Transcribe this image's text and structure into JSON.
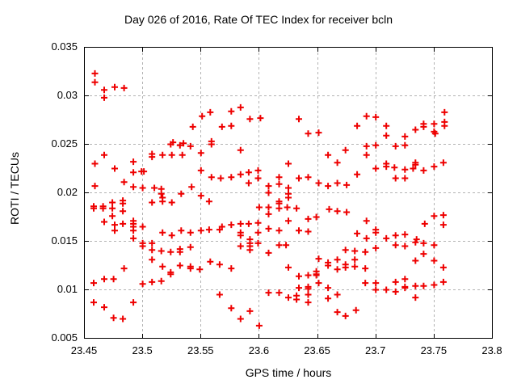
{
  "title": "Day 026 of 2016, Rate Of TEC Index for receiver bcln",
  "colors": {
    "background": "#ffffff",
    "text": "#000000",
    "border": "#000000",
    "grid": "#b3b3b3",
    "marker": "#ee0000"
  },
  "chart_data": {
    "type": "scatter",
    "title": "Day 026 of 2016, Rate Of TEC Index for receiver bcln",
    "xlabel": "GPS time / hours",
    "ylabel": "ROTI / TECUs",
    "xlim": [
      23.45,
      23.8
    ],
    "ylim": [
      0.005,
      0.035
    ],
    "x_ticks": [
      23.45,
      23.5,
      23.55,
      23.6,
      23.65,
      23.7,
      23.75,
      23.8
    ],
    "x_tick_labels": [
      "23.45",
      "23.5",
      "23.55",
      "23.6",
      "23.65",
      "23.7",
      "23.75",
      "23.8"
    ],
    "y_ticks": [
      0.005,
      0.01,
      0.015,
      0.02,
      0.025,
      0.03,
      0.035
    ],
    "y_tick_labels": [
      "0.005",
      "0.01",
      "0.015",
      "0.02",
      "0.025",
      "0.03",
      "0.035"
    ],
    "grid": true,
    "legend": "none",
    "marker": {
      "shape": "plus",
      "color": "#ee0000",
      "size": 9,
      "stroke": 2
    },
    "series": [
      {
        "name": "ROTI",
        "points": [
          [
            23.459,
            0.0323
          ],
          [
            23.459,
            0.0314
          ],
          [
            23.467,
            0.0306
          ],
          [
            23.467,
            0.0298
          ],
          [
            23.476,
            0.0309
          ],
          [
            23.484,
            0.0308
          ],
          [
            23.526,
            0.0252
          ],
          [
            23.535,
            0.0251
          ],
          [
            23.543,
            0.0268
          ],
          [
            23.551,
            0.0279
          ],
          [
            23.558,
            0.0283
          ],
          [
            23.559,
            0.0253
          ],
          [
            23.568,
            0.0268
          ],
          [
            23.576,
            0.0284
          ],
          [
            23.576,
            0.0269
          ],
          [
            23.584,
            0.0288
          ],
          [
            23.592,
            0.0276
          ],
          [
            23.601,
            0.0277
          ],
          [
            23.634,
            0.0276
          ],
          [
            23.642,
            0.0261
          ],
          [
            23.651,
            0.0262
          ],
          [
            23.684,
            0.0269
          ],
          [
            23.692,
            0.0279
          ],
          [
            23.7,
            0.0278
          ],
          [
            23.709,
            0.0269
          ],
          [
            23.709,
            0.0259
          ],
          [
            23.725,
            0.0258
          ],
          [
            23.734,
            0.0265
          ],
          [
            23.741,
            0.0271
          ],
          [
            23.741,
            0.0268
          ],
          [
            23.75,
            0.0271
          ],
          [
            23.75,
            0.0263
          ],
          [
            23.751,
            0.0261
          ],
          [
            23.759,
            0.0283
          ],
          [
            23.759,
            0.0273
          ],
          [
            23.759,
            0.0269
          ],
          [
            23.524,
            0.025
          ],
          [
            23.532,
            0.0249
          ],
          [
            23.541,
            0.0248
          ],
          [
            23.559,
            0.025
          ],
          [
            23.467,
            0.0239
          ],
          [
            23.508,
            0.024
          ],
          [
            23.508,
            0.0237
          ],
          [
            23.517,
            0.0239
          ],
          [
            23.525,
            0.0239
          ],
          [
            23.534,
            0.0239
          ],
          [
            23.55,
            0.0241
          ],
          [
            23.584,
            0.0244
          ],
          [
            23.674,
            0.0244
          ],
          [
            23.659,
            0.0239
          ],
          [
            23.692,
            0.0248
          ],
          [
            23.7,
            0.0249
          ],
          [
            23.717,
            0.0248
          ],
          [
            23.725,
            0.0249
          ],
          [
            23.692,
            0.0239
          ],
          [
            23.459,
            0.023
          ],
          [
            23.476,
            0.0225
          ],
          [
            23.492,
            0.0232
          ],
          [
            23.492,
            0.0221
          ],
          [
            23.499,
            0.0222
          ],
          [
            23.501,
            0.0222
          ],
          [
            23.55,
            0.0223
          ],
          [
            23.559,
            0.0216
          ],
          [
            23.567,
            0.0215
          ],
          [
            23.576,
            0.0216
          ],
          [
            23.584,
            0.0219
          ],
          [
            23.591,
            0.0221
          ],
          [
            23.591,
            0.021
          ],
          [
            23.599,
            0.0223
          ],
          [
            23.599,
            0.0215
          ],
          [
            23.617,
            0.0216
          ],
          [
            23.617,
            0.0209
          ],
          [
            23.625,
            0.023
          ],
          [
            23.634,
            0.0215
          ],
          [
            23.642,
            0.0216
          ],
          [
            23.651,
            0.021
          ],
          [
            23.659,
            0.0207
          ],
          [
            23.667,
            0.0231
          ],
          [
            23.667,
            0.021
          ],
          [
            23.675,
            0.0208
          ],
          [
            23.684,
            0.0219
          ],
          [
            23.709,
            0.023
          ],
          [
            23.709,
            0.0227
          ],
          [
            23.7,
            0.0225
          ],
          [
            23.716,
            0.0226
          ],
          [
            23.725,
            0.0224
          ],
          [
            23.734,
            0.0231
          ],
          [
            23.734,
            0.0229
          ],
          [
            23.732,
            0.0225
          ],
          [
            23.741,
            0.0223
          ],
          [
            23.75,
            0.0227
          ],
          [
            23.758,
            0.0231
          ],
          [
            23.717,
            0.0215
          ],
          [
            23.725,
            0.0215
          ],
          [
            23.484,
            0.0211
          ],
          [
            23.459,
            0.0207
          ],
          [
            23.492,
            0.0206
          ],
          [
            23.5,
            0.0205
          ],
          [
            23.51,
            0.0205
          ],
          [
            23.516,
            0.0204
          ],
          [
            23.542,
            0.0206
          ],
          [
            23.516,
            0.0199
          ],
          [
            23.533,
            0.0199
          ],
          [
            23.55,
            0.0197
          ],
          [
            23.517,
            0.0195
          ],
          [
            23.608,
            0.0207
          ],
          [
            23.608,
            0.02
          ],
          [
            23.625,
            0.0205
          ],
          [
            23.625,
            0.0199
          ],
          [
            23.625,
            0.0195
          ],
          [
            23.508,
            0.019
          ],
          [
            23.517,
            0.0191
          ],
          [
            23.525,
            0.019
          ],
          [
            23.557,
            0.0191
          ],
          [
            23.617,
            0.0191
          ],
          [
            23.617,
            0.0189
          ],
          [
            23.617,
            0.0184
          ],
          [
            23.6,
            0.0185
          ],
          [
            23.608,
            0.0185
          ],
          [
            23.624,
            0.0185
          ],
          [
            23.632,
            0.0184
          ],
          [
            23.458,
            0.0186
          ],
          [
            23.458,
            0.0184
          ],
          [
            23.466,
            0.0186
          ],
          [
            23.466,
            0.0184
          ],
          [
            23.474,
            0.019
          ],
          [
            23.474,
            0.0184
          ],
          [
            23.483,
            0.0192
          ],
          [
            23.483,
            0.0189
          ],
          [
            23.483,
            0.0181
          ],
          [
            23.474,
            0.0176
          ],
          [
            23.467,
            0.017
          ],
          [
            23.476,
            0.0167
          ],
          [
            23.476,
            0.0161
          ],
          [
            23.483,
            0.0168
          ],
          [
            23.492,
            0.0171
          ],
          [
            23.492,
            0.0168
          ],
          [
            23.492,
            0.0165
          ],
          [
            23.492,
            0.0161
          ],
          [
            23.5,
            0.0165
          ],
          [
            23.608,
            0.0178
          ],
          [
            23.625,
            0.0171
          ],
          [
            23.642,
            0.0173
          ],
          [
            23.649,
            0.0175
          ],
          [
            23.66,
            0.0183
          ],
          [
            23.667,
            0.0181
          ],
          [
            23.675,
            0.018
          ],
          [
            23.692,
            0.0171
          ],
          [
            23.75,
            0.0176
          ],
          [
            23.758,
            0.0177
          ],
          [
            23.758,
            0.0167
          ],
          [
            23.742,
            0.0168
          ],
          [
            23.517,
            0.0159
          ],
          [
            23.525,
            0.0156
          ],
          [
            23.533,
            0.0161
          ],
          [
            23.541,
            0.0159
          ],
          [
            23.55,
            0.0161
          ],
          [
            23.557,
            0.0162
          ],
          [
            23.566,
            0.0162
          ],
          [
            23.492,
            0.0153
          ],
          [
            23.576,
            0.0167
          ],
          [
            23.584,
            0.0168
          ],
          [
            23.591,
            0.0168
          ],
          [
            23.568,
            0.0165
          ],
          [
            23.584,
            0.0159
          ],
          [
            23.584,
            0.0156
          ],
          [
            23.599,
            0.0169
          ],
          [
            23.599,
            0.0159
          ],
          [
            23.608,
            0.0163
          ],
          [
            23.617,
            0.0161
          ],
          [
            23.634,
            0.0161
          ],
          [
            23.642,
            0.016
          ],
          [
            23.684,
            0.0158
          ],
          [
            23.592,
            0.0152
          ],
          [
            23.7,
            0.0162
          ],
          [
            23.7,
            0.0159
          ],
          [
            23.692,
            0.0153
          ],
          [
            23.717,
            0.0156
          ],
          [
            23.725,
            0.0157
          ],
          [
            23.709,
            0.0153
          ],
          [
            23.735,
            0.0152
          ],
          [
            23.5,
            0.0148
          ],
          [
            23.5,
            0.0145
          ],
          [
            23.508,
            0.0148
          ],
          [
            23.508,
            0.0141
          ],
          [
            23.516,
            0.014
          ],
          [
            23.524,
            0.0139
          ],
          [
            23.532,
            0.0142
          ],
          [
            23.532,
            0.0139
          ],
          [
            23.541,
            0.0144
          ],
          [
            23.584,
            0.0145
          ],
          [
            23.592,
            0.0148
          ],
          [
            23.592,
            0.0145
          ],
          [
            23.592,
            0.0141
          ],
          [
            23.599,
            0.0148
          ],
          [
            23.617,
            0.0146
          ],
          [
            23.623,
            0.0146
          ],
          [
            23.608,
            0.0138
          ],
          [
            23.674,
            0.0141
          ],
          [
            23.682,
            0.014
          ],
          [
            23.717,
            0.0146
          ],
          [
            23.725,
            0.0145
          ],
          [
            23.734,
            0.0149
          ],
          [
            23.741,
            0.0148
          ],
          [
            23.75,
            0.0146
          ],
          [
            23.691,
            0.0139
          ],
          [
            23.7,
            0.0143
          ],
          [
            23.741,
            0.0137
          ],
          [
            23.508,
            0.0131
          ],
          [
            23.484,
            0.0122
          ],
          [
            23.517,
            0.0124
          ],
          [
            23.524,
            0.0118
          ],
          [
            23.524,
            0.0116
          ],
          [
            23.532,
            0.0125
          ],
          [
            23.541,
            0.0124
          ],
          [
            23.541,
            0.0122
          ],
          [
            23.549,
            0.0121
          ],
          [
            23.558,
            0.0129
          ],
          [
            23.566,
            0.0126
          ],
          [
            23.576,
            0.0122
          ],
          [
            23.625,
            0.0123
          ],
          [
            23.651,
            0.0132
          ],
          [
            23.659,
            0.0128
          ],
          [
            23.659,
            0.0125
          ],
          [
            23.667,
            0.0131
          ],
          [
            23.667,
            0.0121
          ],
          [
            23.674,
            0.0126
          ],
          [
            23.674,
            0.0123
          ],
          [
            23.682,
            0.0131
          ],
          [
            23.682,
            0.0124
          ],
          [
            23.734,
            0.013
          ],
          [
            23.75,
            0.013
          ],
          [
            23.691,
            0.0122
          ],
          [
            23.758,
            0.0123
          ],
          [
            23.458,
            0.0107
          ],
          [
            23.467,
            0.0111
          ],
          [
            23.475,
            0.0111
          ],
          [
            23.5,
            0.0106
          ],
          [
            23.508,
            0.0108
          ],
          [
            23.516,
            0.0109
          ],
          [
            23.634,
            0.0114
          ],
          [
            23.642,
            0.0115
          ],
          [
            23.649,
            0.0119
          ],
          [
            23.649,
            0.0116
          ],
          [
            23.649,
            0.0115
          ],
          [
            23.651,
            0.0107
          ],
          [
            23.758,
            0.0108
          ],
          [
            23.725,
            0.0111
          ],
          [
            23.691,
            0.0107
          ],
          [
            23.7,
            0.0107
          ],
          [
            23.717,
            0.0108
          ],
          [
            23.725,
            0.0103
          ],
          [
            23.734,
            0.0104
          ],
          [
            23.741,
            0.0104
          ],
          [
            23.75,
            0.0105
          ],
          [
            23.7,
            0.01
          ],
          [
            23.709,
            0.01
          ],
          [
            23.717,
            0.0098
          ],
          [
            23.725,
            0.0102
          ],
          [
            23.734,
            0.0092
          ],
          [
            23.634,
            0.0102
          ],
          [
            23.642,
            0.0103
          ],
          [
            23.642,
            0.0101
          ],
          [
            23.608,
            0.0097
          ],
          [
            23.617,
            0.0097
          ],
          [
            23.625,
            0.0092
          ],
          [
            23.632,
            0.0094
          ],
          [
            23.632,
            0.009
          ],
          [
            23.642,
            0.0095
          ],
          [
            23.642,
            0.0087
          ],
          [
            23.659,
            0.0102
          ],
          [
            23.667,
            0.0095
          ],
          [
            23.659,
            0.0091
          ],
          [
            23.566,
            0.0095
          ],
          [
            23.458,
            0.0087
          ],
          [
            23.467,
            0.0082
          ],
          [
            23.492,
            0.0087
          ],
          [
            23.475,
            0.0071
          ],
          [
            23.483,
            0.007
          ],
          [
            23.576,
            0.0081
          ],
          [
            23.592,
            0.0078
          ],
          [
            23.584,
            0.007
          ],
          [
            23.6,
            0.0063
          ],
          [
            23.667,
            0.0077
          ],
          [
            23.674,
            0.0073
          ],
          [
            23.683,
            0.0079
          ]
        ]
      }
    ]
  }
}
